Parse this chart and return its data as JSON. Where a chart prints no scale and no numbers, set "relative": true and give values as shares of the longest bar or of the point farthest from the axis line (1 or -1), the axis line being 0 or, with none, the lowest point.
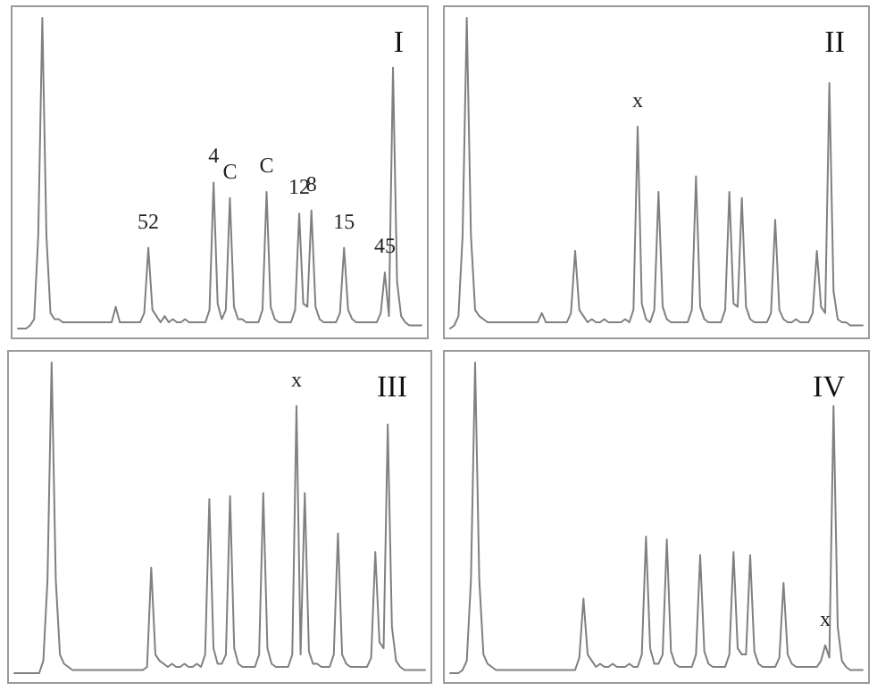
{
  "chart_data": [
    {
      "type": "line",
      "title": "I",
      "relative": true,
      "color": "#808080",
      "annotations": [
        {
          "text": "52",
          "y": 0.26
        },
        {
          "text": "4",
          "y": 0.47
        },
        {
          "text": "C",
          "y": 0.42
        },
        {
          "text": "C",
          "y": 0.44
        },
        {
          "text": "12",
          "y": 0.37
        },
        {
          "text": "8",
          "y": 0.38
        },
        {
          "text": "15",
          "y": 0.26
        },
        {
          "text": "45",
          "y": 0.18
        }
      ],
      "categories": [
        null,
        null,
        null,
        null,
        null,
        null,
        null,
        null,
        null,
        null,
        null,
        null,
        null,
        null,
        null,
        null,
        null,
        null,
        null,
        null,
        null,
        null,
        null,
        null,
        null,
        null,
        null,
        null,
        null,
        null,
        null,
        null,
        null,
        null,
        null,
        null,
        null,
        null,
        null,
        null,
        null,
        null,
        null,
        null,
        null,
        null,
        null,
        null,
        null,
        null,
        null,
        null,
        null,
        null,
        null,
        null,
        null,
        null,
        null,
        null,
        null,
        null,
        null,
        null,
        null,
        null,
        null,
        null,
        null,
        null,
        null,
        null,
        null,
        null,
        null,
        null,
        null,
        null,
        null,
        null,
        null,
        null,
        null,
        null,
        null,
        null,
        null,
        null,
        null,
        null,
        null,
        null,
        null,
        null,
        null,
        null,
        null,
        null,
        null,
        null
      ],
      "values": [
        0,
        0,
        0,
        0.01,
        0.03,
        0.3,
        1,
        0.3,
        0.05,
        0.03,
        0.03,
        0.02,
        0.02,
        0.02,
        0.02,
        0.02,
        0.02,
        0.02,
        0.02,
        0.02,
        0.02,
        0.02,
        0.02,
        0.02,
        0.07,
        0.02,
        0.02,
        0.02,
        0.02,
        0.02,
        0.02,
        0.05,
        0.26,
        0.06,
        0.04,
        0.02,
        0.04,
        0.02,
        0.03,
        0.02,
        0.02,
        0.03,
        0.02,
        0.02,
        0.02,
        0.02,
        0.02,
        0.06,
        0.47,
        0.08,
        0.03,
        0.06,
        0.42,
        0.07,
        0.03,
        0.03,
        0.02,
        0.02,
        0.02,
        0.02,
        0.06,
        0.44,
        0.07,
        0.03,
        0.02,
        0.02,
        0.02,
        0.02,
        0.06,
        0.37,
        0.08,
        0.07,
        0.38,
        0.07,
        0.03,
        0.02,
        0.02,
        0.02,
        0.02,
        0.05,
        0.26,
        0.06,
        0.03,
        0.02,
        0.02,
        0.02,
        0.02,
        0.02,
        0.02,
        0.05,
        0.18,
        0.04,
        0.84,
        0.15,
        0.04,
        0.02,
        0.01,
        0.01,
        0.01,
        0.01
      ]
    },
    {
      "type": "line",
      "title": "II",
      "relative": true,
      "color": "#808080",
      "annotations": [
        {
          "text": "x",
          "y": 0.65
        }
      ],
      "categories": [
        null,
        null,
        null,
        null,
        null,
        null,
        null,
        null,
        null,
        null,
        null,
        null,
        null,
        null,
        null,
        null,
        null,
        null,
        null,
        null,
        null,
        null,
        null,
        null,
        null,
        null,
        null,
        null,
        null,
        null,
        null,
        null,
        null,
        null,
        null,
        null,
        null,
        null,
        null,
        null,
        null,
        null,
        null,
        null,
        null,
        null,
        null,
        null,
        null,
        null,
        null,
        null,
        null,
        null,
        null,
        null,
        null,
        null,
        null,
        null,
        null,
        null,
        null,
        null,
        null,
        null,
        null,
        null,
        null,
        null,
        null,
        null,
        null,
        null,
        null,
        null,
        null,
        null,
        null,
        null,
        null,
        null,
        null,
        null,
        null,
        null,
        null,
        null,
        null,
        null,
        null,
        null,
        null,
        null,
        null,
        null,
        null,
        null,
        null,
        null
      ],
      "values": [
        0,
        0.01,
        0.04,
        0.3,
        1,
        0.3,
        0.06,
        0.04,
        0.03,
        0.02,
        0.02,
        0.02,
        0.02,
        0.02,
        0.02,
        0.02,
        0.02,
        0.02,
        0.02,
        0.02,
        0.02,
        0.02,
        0.05,
        0.02,
        0.02,
        0.02,
        0.02,
        0.02,
        0.02,
        0.05,
        0.25,
        0.06,
        0.04,
        0.02,
        0.03,
        0.02,
        0.02,
        0.03,
        0.02,
        0.02,
        0.02,
        0.02,
        0.03,
        0.02,
        0.06,
        0.65,
        0.08,
        0.03,
        0.02,
        0.06,
        0.44,
        0.07,
        0.03,
        0.02,
        0.02,
        0.02,
        0.02,
        0.02,
        0.06,
        0.49,
        0.07,
        0.03,
        0.02,
        0.02,
        0.02,
        0.02,
        0.06,
        0.44,
        0.08,
        0.07,
        0.42,
        0.07,
        0.03,
        0.02,
        0.02,
        0.02,
        0.02,
        0.05,
        0.35,
        0.06,
        0.03,
        0.02,
        0.02,
        0.03,
        0.02,
        0.02,
        0.02,
        0.05,
        0.25,
        0.07,
        0.05,
        0.79,
        0.12,
        0.03,
        0.02,
        0.02,
        0.01,
        0.01,
        0.01,
        0.01
      ]
    },
    {
      "type": "line",
      "title": "III",
      "relative": true,
      "color": "#808080",
      "annotations": [
        {
          "text": "x",
          "y": 0.86
        }
      ],
      "categories": [
        null,
        null,
        null,
        null,
        null,
        null,
        null,
        null,
        null,
        null,
        null,
        null,
        null,
        null,
        null,
        null,
        null,
        null,
        null,
        null,
        null,
        null,
        null,
        null,
        null,
        null,
        null,
        null,
        null,
        null,
        null,
        null,
        null,
        null,
        null,
        null,
        null,
        null,
        null,
        null,
        null,
        null,
        null,
        null,
        null,
        null,
        null,
        null,
        null,
        null,
        null,
        null,
        null,
        null,
        null,
        null,
        null,
        null,
        null,
        null,
        null,
        null,
        null,
        null,
        null,
        null,
        null,
        null,
        null,
        null,
        null,
        null,
        null,
        null,
        null,
        null,
        null,
        null,
        null,
        null,
        null,
        null,
        null,
        null,
        null,
        null,
        null,
        null,
        null,
        null,
        null,
        null,
        null,
        null,
        null,
        null,
        null,
        null,
        null,
        null
      ],
      "values": [
        0,
        0,
        0,
        0,
        0,
        0,
        0,
        0.04,
        0.3,
        1,
        0.3,
        0.06,
        0.03,
        0.02,
        0.01,
        0.01,
        0.01,
        0.01,
        0.01,
        0.01,
        0.01,
        0.01,
        0.01,
        0.01,
        0.01,
        0.01,
        0.01,
        0.01,
        0.01,
        0.01,
        0.01,
        0.01,
        0.02,
        0.34,
        0.06,
        0.04,
        0.03,
        0.02,
        0.03,
        0.02,
        0.02,
        0.03,
        0.02,
        0.02,
        0.03,
        0.02,
        0.06,
        0.56,
        0.08,
        0.03,
        0.03,
        0.06,
        0.57,
        0.08,
        0.03,
        0.02,
        0.02,
        0.02,
        0.02,
        0.06,
        0.58,
        0.08,
        0.03,
        0.02,
        0.02,
        0.02,
        0.02,
        0.06,
        0.86,
        0.06,
        0.58,
        0.07,
        0.03,
        0.03,
        0.02,
        0.02,
        0.02,
        0.06,
        0.45,
        0.06,
        0.03,
        0.02,
        0.02,
        0.02,
        0.02,
        0.02,
        0.05,
        0.39,
        0.1,
        0.08,
        0.8,
        0.15,
        0.04,
        0.02,
        0.01,
        0.01,
        0.01,
        0.01,
        0.01,
        0.01
      ]
    },
    {
      "type": "line",
      "title": "IV",
      "relative": true,
      "color": "#808080",
      "annotations": [
        {
          "text": "x",
          "y": 0.09
        }
      ],
      "categories": [
        null,
        null,
        null,
        null,
        null,
        null,
        null,
        null,
        null,
        null,
        null,
        null,
        null,
        null,
        null,
        null,
        null,
        null,
        null,
        null,
        null,
        null,
        null,
        null,
        null,
        null,
        null,
        null,
        null,
        null,
        null,
        null,
        null,
        null,
        null,
        null,
        null,
        null,
        null,
        null,
        null,
        null,
        null,
        null,
        null,
        null,
        null,
        null,
        null,
        null,
        null,
        null,
        null,
        null,
        null,
        null,
        null,
        null,
        null,
        null,
        null,
        null,
        null,
        null,
        null,
        null,
        null,
        null,
        null,
        null,
        null,
        null,
        null,
        null,
        null,
        null,
        null,
        null,
        null,
        null,
        null,
        null,
        null,
        null,
        null,
        null,
        null,
        null,
        null,
        null,
        null,
        null,
        null,
        null,
        null,
        null,
        null,
        null,
        null,
        null
      ],
      "values": [
        0,
        0,
        0,
        0.01,
        0.04,
        0.3,
        1,
        0.3,
        0.06,
        0.03,
        0.02,
        0.01,
        0.01,
        0.01,
        0.01,
        0.01,
        0.01,
        0.01,
        0.01,
        0.01,
        0.01,
        0.01,
        0.01,
        0.01,
        0.01,
        0.01,
        0.01,
        0.01,
        0.01,
        0.01,
        0.01,
        0.05,
        0.24,
        0.06,
        0.04,
        0.02,
        0.03,
        0.02,
        0.02,
        0.03,
        0.02,
        0.02,
        0.02,
        0.03,
        0.02,
        0.02,
        0.06,
        0.44,
        0.08,
        0.03,
        0.03,
        0.06,
        0.43,
        0.07,
        0.03,
        0.02,
        0.02,
        0.02,
        0.02,
        0.06,
        0.38,
        0.07,
        0.03,
        0.02,
        0.02,
        0.02,
        0.02,
        0.06,
        0.39,
        0.08,
        0.06,
        0.06,
        0.38,
        0.07,
        0.03,
        0.02,
        0.02,
        0.02,
        0.02,
        0.05,
        0.29,
        0.06,
        0.03,
        0.02,
        0.02,
        0.02,
        0.02,
        0.02,
        0.02,
        0.04,
        0.09,
        0.05,
        0.86,
        0.15,
        0.04,
        0.02,
        0.01,
        0.01,
        0.01,
        0.01
      ]
    }
  ]
}
